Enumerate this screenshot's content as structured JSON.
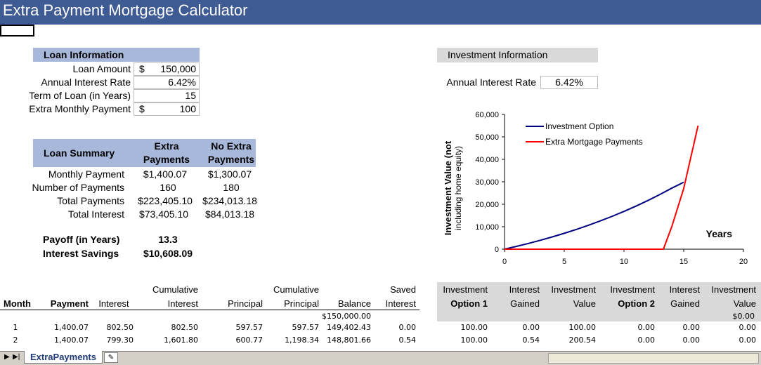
{
  "title": "Extra Payment Mortgage Calculator",
  "loan_info": {
    "header": "Loan Information",
    "rows": [
      {
        "label": "Loan Amount",
        "prefix": "$",
        "value": "150,000"
      },
      {
        "label": "Annual Interest Rate",
        "prefix": "",
        "value": "6.42%"
      },
      {
        "label": "Term of Loan (in Years)",
        "prefix": "",
        "value": "15"
      },
      {
        "label": "Extra Monthly Payment",
        "prefix": "$",
        "value": "100"
      }
    ]
  },
  "loan_summary": {
    "header": "Loan Summary",
    "col1": [
      "Extra",
      "Payments"
    ],
    "col2": [
      "No Extra",
      "Payments"
    ],
    "rows": [
      {
        "label": "Monthly Payment",
        "a": "$1,400.07",
        "b": "$1,300.07"
      },
      {
        "label": "Number of Payments",
        "a": "160",
        "b": "180"
      },
      {
        "label": "Total Payments",
        "a": "$223,405.10",
        "b": "$234,013.18"
      },
      {
        "label": "Total Interest",
        "a": "$73,405.10",
        "b": "$84,013.18"
      }
    ],
    "payoff_label": "Payoff (in Years)",
    "payoff_value": "13.3",
    "savings_label": "Interest Savings",
    "savings_value": "$10,608.09"
  },
  "investment_info": {
    "header": "Investment Information",
    "rate_label": "Annual Interest Rate",
    "rate_value": "6.42%"
  },
  "chart_data": {
    "type": "line",
    "ylabel_line1": "Investment Value (not",
    "ylabel_line2": "including home equity)",
    "xlabel": "Years",
    "xlim": [
      0,
      20
    ],
    "ylim": [
      0,
      60000
    ],
    "xticks": [
      "0",
      "5",
      "10",
      "15",
      "20"
    ],
    "yticks": [
      "0",
      "10,000",
      "20,000",
      "30,000",
      "40,000",
      "50,000",
      "60,000"
    ],
    "legend_position": "top-right",
    "series": [
      {
        "name": "Investment Option",
        "color": "#000080",
        "x": [
          0,
          1,
          2,
          3,
          4,
          5,
          6,
          7,
          8,
          9,
          10,
          11,
          12,
          13,
          14,
          15
        ],
        "y": [
          0,
          1240,
          2560,
          3970,
          5470,
          7070,
          8780,
          10600,
          12540,
          14610,
          16810,
          19160,
          21660,
          24330,
          27170,
          29800
        ]
      },
      {
        "name": "Extra Mortgage Payments",
        "color": "#ff0000",
        "x": [
          0,
          13.3,
          14,
          15,
          16.2
        ],
        "y": [
          0,
          0,
          10000,
          27000,
          55000
        ]
      }
    ]
  },
  "bottom_table": {
    "headers_top": [
      "",
      "",
      "",
      "Cumulative",
      "",
      "Cumulative",
      "",
      "Saved",
      "Investment",
      "Interest",
      "Investment",
      "Investment",
      "Interest",
      "Investment"
    ],
    "headers_bot": [
      "Month",
      "Payment",
      "Interest",
      "Interest",
      "Principal",
      "Principal",
      "Balance",
      "Interest",
      "Option 1",
      "Gained",
      "Value",
      "Option 2",
      "Gained",
      "Value"
    ],
    "initial_balance": "$150,000.00",
    "initial_value2": "$0.00",
    "rows": [
      [
        "1",
        "1,400.07",
        "802.50",
        "802.50",
        "597.57",
        "597.57",
        "149,402.43",
        "0.00",
        "100.00",
        "0.00",
        "100.00",
        "0.00",
        "0.00",
        "0.00"
      ],
      [
        "2",
        "1,400.07",
        "799.30",
        "1,601.80",
        "600.77",
        "1,198.34",
        "148,801.66",
        "0.54",
        "100.00",
        "0.54",
        "200.54",
        "0.00",
        "0.00",
        "0.00"
      ]
    ]
  },
  "sheet_tab": "ExtraPayments"
}
